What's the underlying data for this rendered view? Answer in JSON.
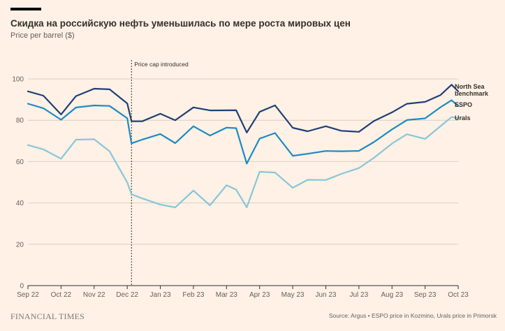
{
  "header": {
    "title": "Скидка на российскую нефть уменьшилась по мере роста мировых цен",
    "subtitle": "Price per barrel ($)"
  },
  "footer": {
    "brand": "FINANCIAL TIMES",
    "source": "Source: Argus • ESPO price in Kozmino, Urals price in Primorsk"
  },
  "colors": {
    "background": "#fff1e5",
    "north_sea": "#0f5499",
    "north_sea_dark": "#1f3f77",
    "espo": "#1a8bc4",
    "urals": "#86c7d9",
    "grid": "#d9cdc2"
  },
  "chart_data": {
    "type": "line",
    "title": "Скидка на российскую нефть уменьшилась по мере роста мировых цен",
    "ylabel": "Price per barrel ($)",
    "xlabel": "",
    "ylim": [
      0,
      105
    ],
    "yticks": [
      0,
      20,
      40,
      60,
      80,
      100
    ],
    "x_tick_labels": [
      "Sep 22",
      "Oct 22",
      "Nov 22",
      "Dec 22",
      "Jan 23",
      "Feb 23",
      "Mar 23",
      "Apr 23",
      "May 23",
      "Jun 23",
      "Jul 23",
      "Aug 23",
      "Sep 23",
      "Oct 23"
    ],
    "x": [
      "Sep 1 22",
      "Sep 15 22",
      "Oct 1 22",
      "Oct 15 22",
      "Nov 1 22",
      "Nov 15 22",
      "Dec 1 22",
      "Dec 5 22",
      "Dec 15 22",
      "Jan 1 23",
      "Jan 15 23",
      "Feb 1 23",
      "Feb 15 23",
      "Mar 1 23",
      "Mar 10 23",
      "Mar 20 23",
      "Apr 1 23",
      "Apr 15 23",
      "May 1 23",
      "May 15 23",
      "Jun 1 23",
      "Jun 15 23",
      "Jul 1 23",
      "Jul 15 23",
      "Aug 1 23",
      "Aug 15 23",
      "Sep 1 23",
      "Sep 15 23",
      "Sep 25 23",
      "Oct 1 23"
    ],
    "series": [
      {
        "name": "North Sea benchmark",
        "values": [
          94,
          91,
          84,
          91,
          95,
          96,
          87,
          80,
          80,
          82,
          81,
          86,
          84,
          86,
          84,
          74,
          85,
          86,
          77,
          75,
          76,
          76,
          74,
          79,
          85,
          87,
          89,
          93,
          96,
          94
        ]
      },
      {
        "name": "ESPO",
        "values": [
          88,
          86,
          81,
          85,
          88,
          87,
          80,
          70,
          70,
          73,
          70,
          76,
          73,
          77,
          75,
          60,
          71,
          73,
          64,
          63,
          65,
          66,
          64,
          70,
          76,
          79,
          82,
          86,
          89,
          87
        ]
      },
      {
        "name": "Urals",
        "values": [
          68,
          67,
          61,
          70,
          72,
          64,
          50,
          45,
          41,
          40,
          38,
          45,
          40,
          48,
          46,
          39,
          54,
          55,
          48,
          50,
          52,
          54,
          56,
          63,
          68,
          73,
          72,
          76,
          82,
          81
        ]
      }
    ],
    "annotations": [
      {
        "label": "Price cap introduced",
        "x": "Dec 5 22"
      }
    ],
    "grid": true,
    "legend": "end-of-line labels, right"
  }
}
